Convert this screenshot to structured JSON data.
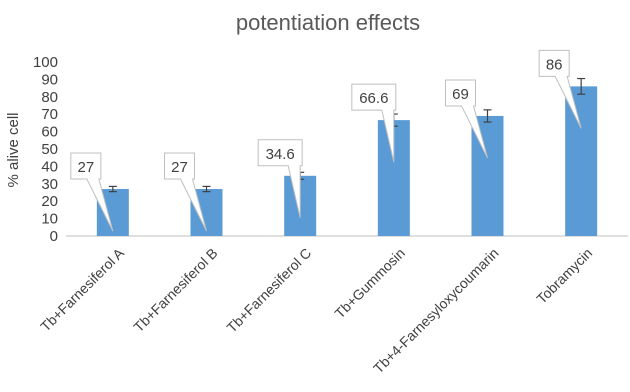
{
  "chart_data": {
    "type": "bar",
    "title": "potentiation effects",
    "xlabel": "",
    "ylabel": "% alive cell",
    "ylim": [
      0,
      100
    ],
    "yticks": [
      0,
      10,
      20,
      30,
      40,
      50,
      60,
      70,
      80,
      90,
      100
    ],
    "grid": false,
    "legend": "none",
    "bar_color": "#5B9BD5",
    "categories": [
      "Tb+Farnesiferol A",
      "Tb+Farnesiferol B",
      "Tb+Farnesiferol C",
      "Tb+Gummosin",
      "Tb+4-Farnesyloxycoumarin",
      "Tobramycin"
    ],
    "values": [
      27,
      27,
      34.6,
      66.6,
      69,
      86
    ],
    "data_labels": [
      "27",
      "27",
      "34.6",
      "66.6",
      "69",
      "86"
    ],
    "error": [
      1.5,
      1.5,
      2,
      3.5,
      3.5,
      4.5
    ]
  }
}
